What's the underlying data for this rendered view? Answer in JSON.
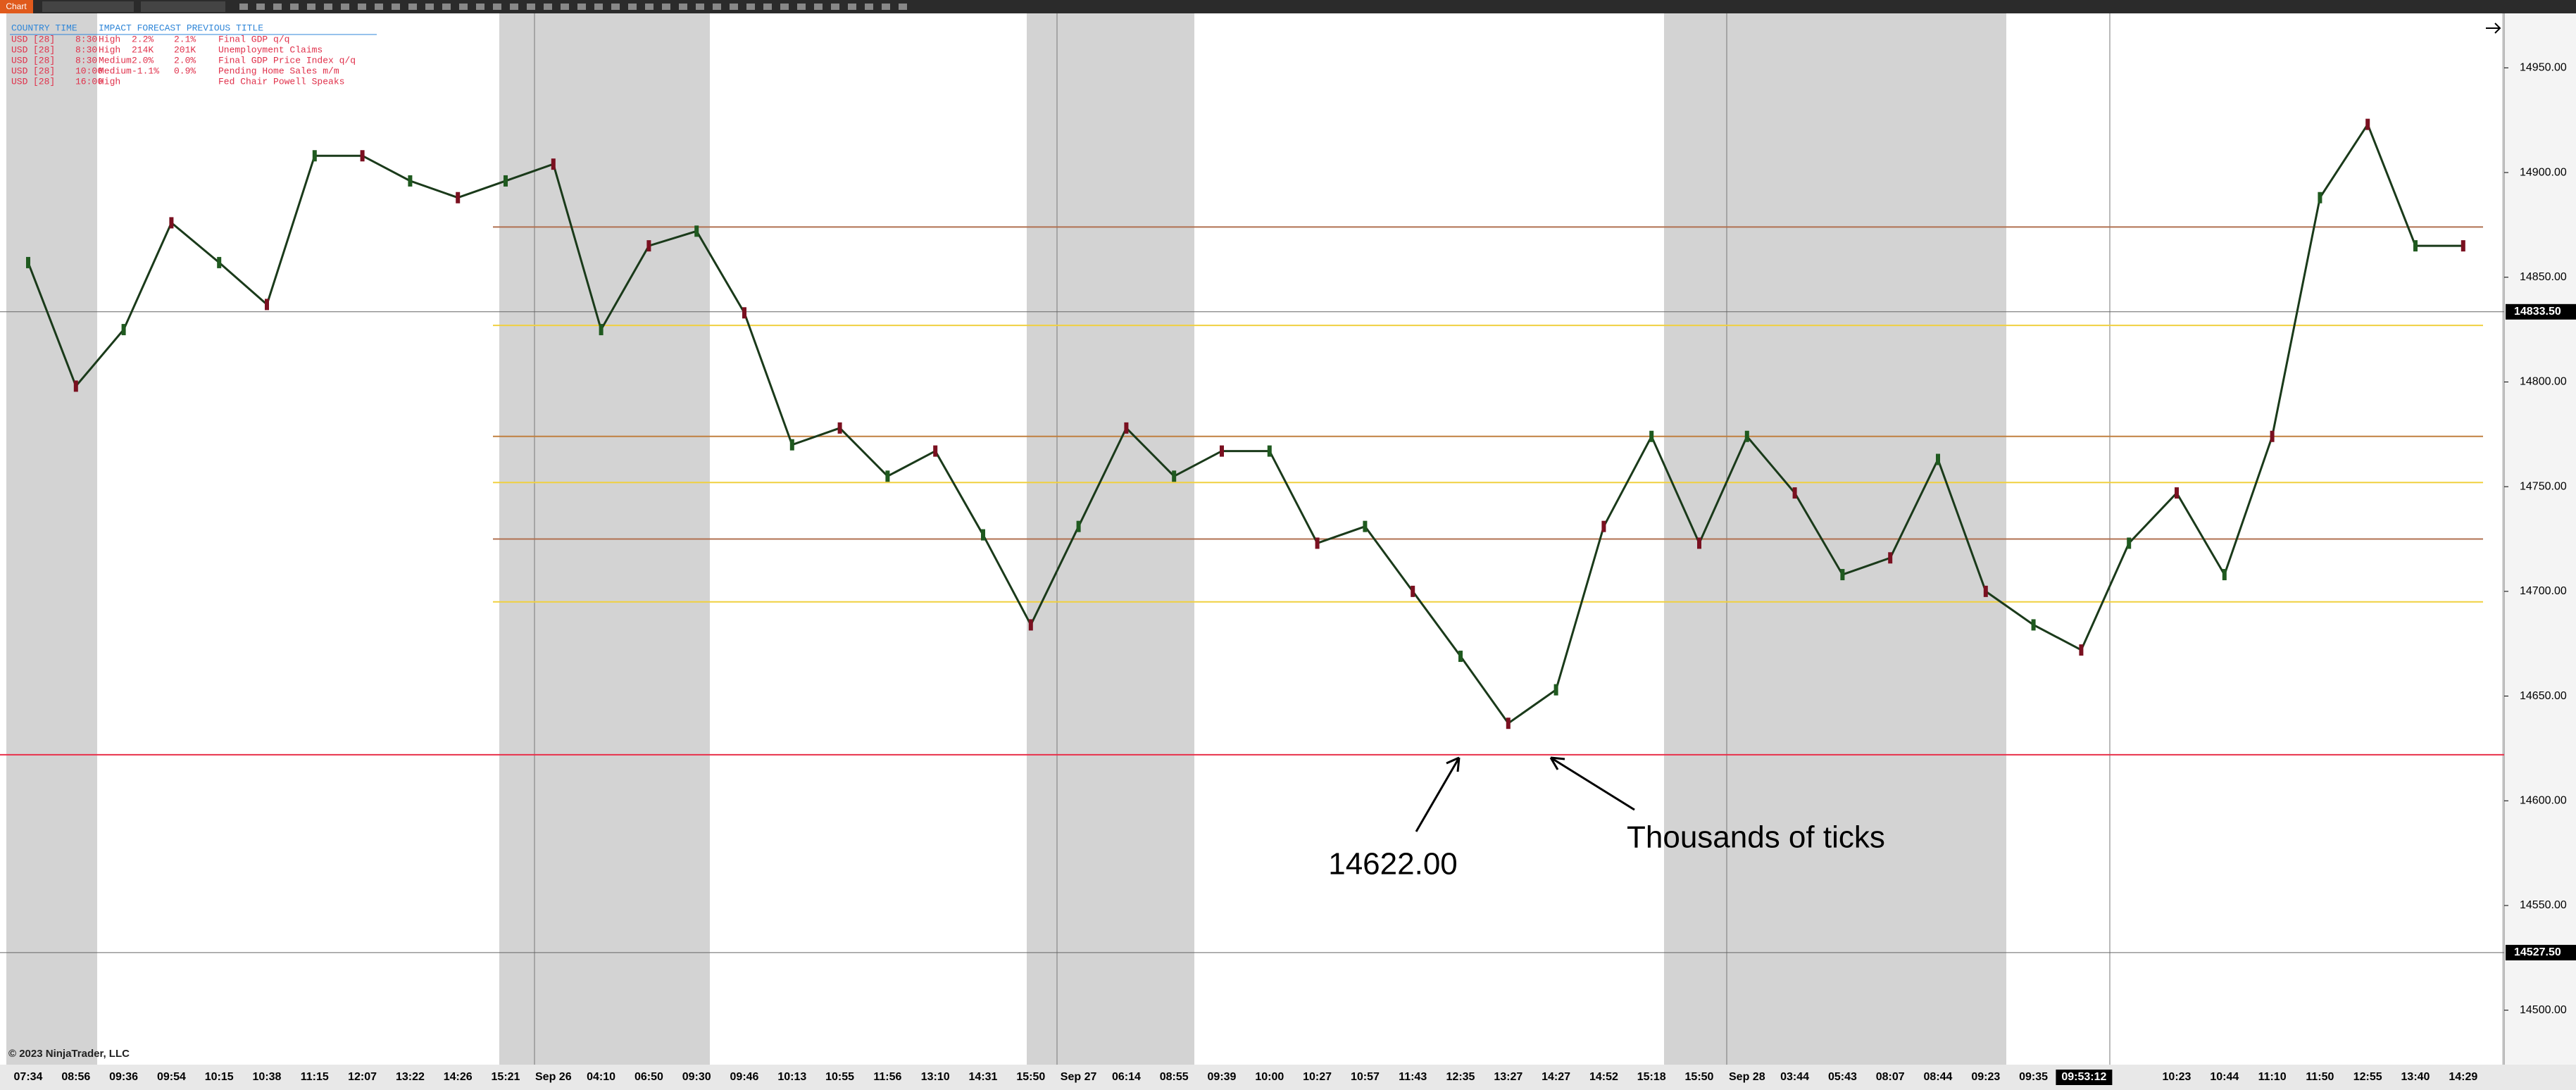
{
  "chart_data": {
    "type": "line",
    "toolbar_button": "Chart",
    "copyright": "© 2023 NinjaTrader, LLC",
    "cursor_time": "09:53:12",
    "categories": [
      "07:34",
      "08:56",
      "09:36",
      "09:54",
      "10:15",
      "10:38",
      "11:15",
      "12:07",
      "13:22",
      "14:26",
      "15:21",
      "Sep 26",
      "04:10",
      "06:50",
      "09:30",
      "09:46",
      "10:13",
      "10:55",
      "11:56",
      "13:10",
      "14:31",
      "15:50",
      "Sep 27",
      "06:14",
      "08:55",
      "09:39",
      "10:00",
      "10:27",
      "10:57",
      "11:43",
      "12:35",
      "13:27",
      "14:27",
      "14:52",
      "15:18",
      "15:50",
      "Sep 28",
      "03:44",
      "05:43",
      "08:07",
      "08:44",
      "09:23",
      "09:35",
      null,
      null,
      "10:23",
      "10:44",
      "11:10",
      "11:50",
      "12:55",
      "13:40",
      "14:29"
    ],
    "series": [
      {
        "color": "#1a3a1a",
        "values": [
          14857,
          14798,
          14825,
          14876,
          14857,
          14837,
          14908,
          14908,
          14896,
          14888,
          14896,
          14904,
          14825,
          14865,
          14872,
          14833,
          14770,
          14778,
          14755,
          14767,
          14727,
          14684,
          14731,
          14778,
          14755,
          14767,
          14767,
          14723,
          14731,
          14700,
          14669,
          14637,
          14653,
          14731,
          14774,
          14723,
          14774,
          14747,
          14708,
          14716,
          14763,
          14700,
          14684,
          14672,
          14723,
          14747,
          14708,
          14774,
          14888,
          14923,
          14865,
          14865
        ]
      }
    ],
    "ylim": [
      14474,
      14976
    ],
    "yticks": [
      {
        "value": 14500,
        "label": "14500.00"
      },
      {
        "value": 14550,
        "label": "14550.00"
      },
      {
        "value": 14600,
        "label": "14600.00"
      },
      {
        "value": 14650,
        "label": "14650.00"
      },
      {
        "value": 14700,
        "label": "14700.00"
      },
      {
        "value": 14750,
        "label": "14750.00"
      },
      {
        "value": 14800,
        "label": "14800.00"
      },
      {
        "value": 14850,
        "label": "14850.00"
      },
      {
        "value": 14900,
        "label": "14900.00"
      },
      {
        "value": 14950,
        "label": "14950.00"
      }
    ],
    "price_markers": [
      {
        "value": 14833.5,
        "label": "14833.50"
      },
      {
        "value": 14527.5,
        "label": "14527.50"
      }
    ],
    "annotations": [
      {
        "text": "14622.00",
        "value": 14622,
        "color": "#e8304a"
      },
      {
        "text": "Thousands of ticks"
      }
    ],
    "levels": [
      {
        "value": 14874,
        "color": "#b07050"
      },
      {
        "value": 14827,
        "color": "#f0d040"
      },
      {
        "value": 14774,
        "color": "#c08040"
      },
      {
        "value": 14752,
        "color": "#f0d040"
      },
      {
        "value": 14725,
        "color": "#b07050"
      },
      {
        "value": 14695,
        "color": "#f0d040"
      }
    ],
    "news": {
      "header": [
        "COUNTRY TIME",
        "IMPACT FORECAST PREVIOUS TITLE"
      ],
      "rows": [
        [
          "USD",
          "[28]",
          "8:30",
          "High",
          "2.2%",
          "2.1%",
          "Final GDP q/q"
        ],
        [
          "USD",
          "[28]",
          "8:30",
          "High",
          "214K",
          "201K",
          "Unemployment Claims"
        ],
        [
          "USD",
          "[28]",
          "8:30",
          "Medium",
          "2.0%",
          "2.0%",
          "Final GDP Price Index q/q"
        ],
        [
          "USD",
          "[28]",
          "10:00",
          "Medium",
          "-1.1%",
          "0.9%",
          "Pending Home Sales m/m"
        ],
        [
          "USD",
          "[28]",
          "16:00",
          "High",
          "",
          "",
          "Fed Chair Powell Speaks"
        ]
      ]
    }
  }
}
